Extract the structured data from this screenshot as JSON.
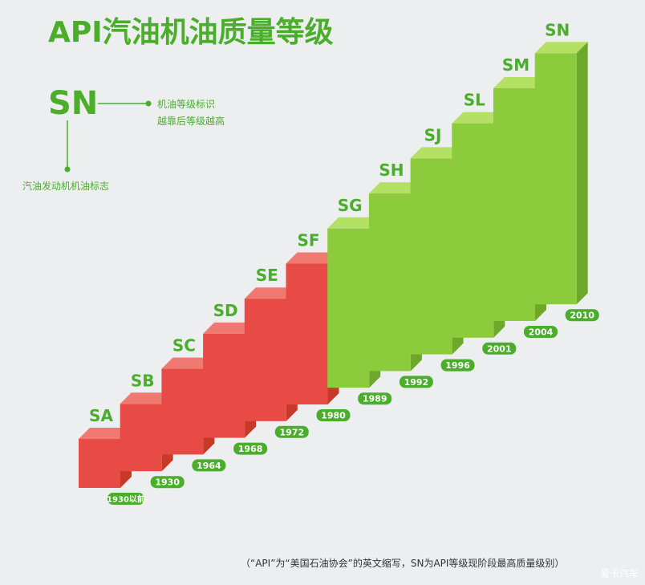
{
  "title": "API汽油机油质量等级",
  "legend": {
    "code": "SN",
    "right_line1": "机油等级标识",
    "right_line2": "越靠后等级越高",
    "bottom": "汽油发动机机油标志"
  },
  "footnote": "（“API”为“美国石油协会”的英文缩写，SN为API等级现阶段最高质量级别）",
  "watermark": "爱卡汽车",
  "colors": {
    "accent": "#4aae2b",
    "green_front": "#8ccc3c",
    "green_top": "#b4e064",
    "green_side": "#6ea82a",
    "red_front": "#e84a45",
    "red_top": "#f07a72",
    "red_side": "#c73a2a",
    "tag": "#4aae2b"
  },
  "chart_data": {
    "type": "bar",
    "title": "API汽油机油质量等级",
    "categories": [
      "SA",
      "SB",
      "SC",
      "SD",
      "SE",
      "SF",
      "SG",
      "SH",
      "SJ",
      "SL",
      "SM",
      "SN"
    ],
    "years": [
      "1930以前",
      "1930",
      "1964",
      "1968",
      "1972",
      "1980",
      "1989",
      "1992",
      "1996",
      "2001",
      "2004",
      "2010"
    ],
    "values": [
      1,
      2,
      3,
      4,
      5,
      6,
      7,
      8,
      9,
      10,
      11,
      12
    ],
    "groups": [
      "red",
      "red",
      "red",
      "red",
      "red",
      "red",
      "green",
      "green",
      "green",
      "green",
      "green",
      "green"
    ]
  }
}
